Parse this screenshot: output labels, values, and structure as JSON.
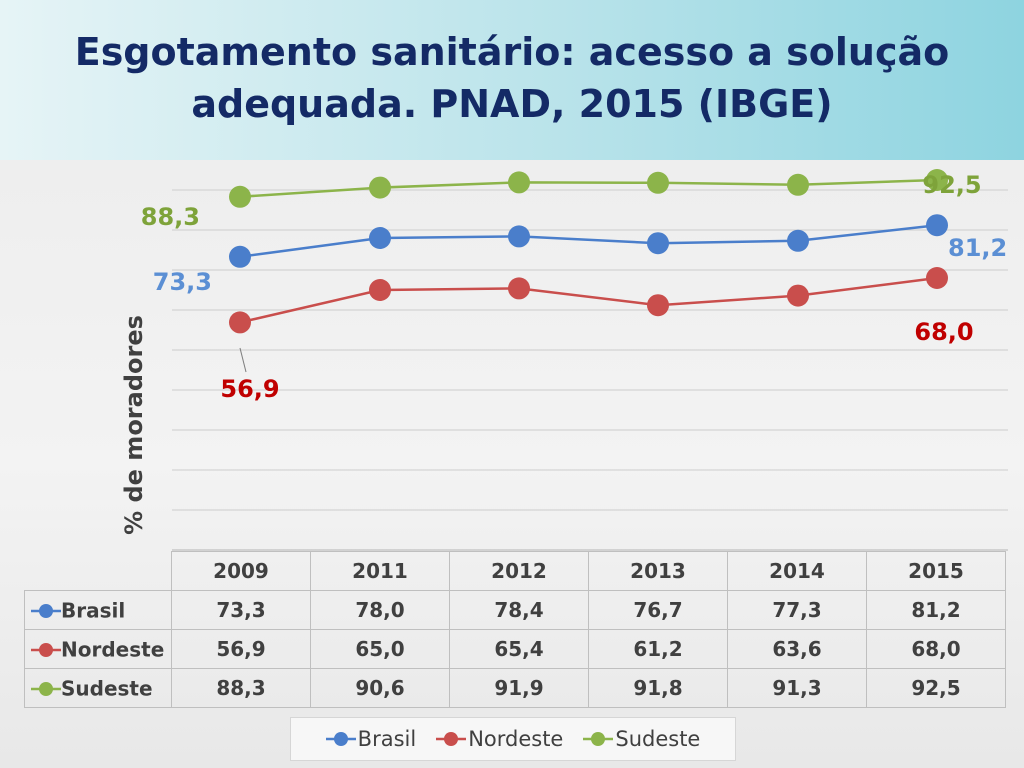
{
  "title": "Esgotamento sanitário: acesso a solução adequada. PNAD, 2015 (IBGE)",
  "chart_data": {
    "type": "line",
    "title": "Esgotamento sanitário: acesso a solução adequada. PNAD, 2015 (IBGE)",
    "ylabel": "% de moradores",
    "xlabel": "",
    "categories": [
      "2009",
      "2011",
      "2012",
      "2013",
      "2014",
      "2015"
    ],
    "ylim": [
      0,
      100
    ],
    "grid": true,
    "legend_position": "bottom",
    "series": [
      {
        "name": "Brasil",
        "color": "#4a7ecb",
        "values": [
          73.3,
          78.0,
          78.4,
          76.7,
          77.3,
          81.2
        ],
        "value_labels": [
          "73,3",
          "78,0",
          "78,4",
          "76,7",
          "77,3",
          "81,2"
        ],
        "data_labels": {
          "first": "73,3",
          "last": "81,2"
        }
      },
      {
        "name": "Nordeste",
        "color": "#c94e4c",
        "values": [
          56.9,
          65.0,
          65.4,
          61.2,
          63.6,
          68.0
        ],
        "value_labels": [
          "56,9",
          "65,0",
          "65,4",
          "61,2",
          "63,6",
          "68,0"
        ],
        "data_labels": {
          "first": "56,9",
          "last": "68,0"
        }
      },
      {
        "name": "Sudeste",
        "color": "#8cb44a",
        "values": [
          88.3,
          90.6,
          91.9,
          91.8,
          91.3,
          92.5
        ],
        "value_labels": [
          "88,3",
          "90,6",
          "91,9",
          "91,8",
          "91,3",
          "92,5"
        ],
        "data_labels": {
          "first": "88,3",
          "last": "92,5"
        }
      }
    ],
    "label_colors": {
      "Brasil": "#5b8fd4",
      "Nordeste": "#c00000",
      "Sudeste": "#7ea33a"
    }
  }
}
